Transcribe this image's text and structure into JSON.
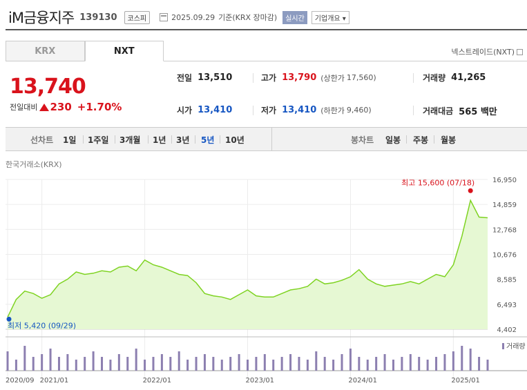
{
  "header": {
    "name": "iM금융지주",
    "code": "139130",
    "market": "코스피",
    "date": "2025.09.29",
    "date_note": "기준(KRX 장마감)",
    "realtime": "실시간",
    "company_info": "기업개요 ▾"
  },
  "tabs": [
    {
      "label": "KRX"
    },
    {
      "label": "NXT"
    }
  ],
  "nextrade": "넥스트레이드(NXT)",
  "price": {
    "current": "13,740",
    "prev_label": "전일대비",
    "change": "230",
    "percent": "+1.70%"
  },
  "stats": {
    "prev_close_label": "전일",
    "prev_close": "13,510",
    "high_label": "고가",
    "high": "13,790",
    "upper_label": "(상한가",
    "upper": "17,560)",
    "volume_label": "거래량",
    "volume": "41,265",
    "open_label": "시가",
    "open": "13,410",
    "low_label": "저가",
    "low": "13,410",
    "lower_label": "(하한가",
    "lower": "9,460)",
    "amount_label": "거래대금",
    "amount": "565 백만"
  },
  "periods": {
    "line_label": "선차트",
    "items": [
      "1일",
      "1주일",
      "3개월",
      "1년",
      "3년",
      "5년",
      "10년"
    ],
    "selected": "5년",
    "candle_label": "봉차트",
    "candle_items": [
      "일봉",
      "주봉",
      "월봉"
    ]
  },
  "exchange_label": "한국거래소(KRX)",
  "colors": {
    "up": "#d9131c",
    "down": "#1656c2",
    "line": "#7ed321",
    "area": "#e6f8d3",
    "volume": "#8c7fb0"
  },
  "chart_data": {
    "type": "area",
    "y_ticks": [
      "16,950",
      "14,859",
      "12,768",
      "10,676",
      "8,585",
      "6,493",
      "4,402"
    ],
    "ylim": [
      4402,
      16950
    ],
    "x_ticks": [
      "2020/09",
      "2021/01",
      "2022/01",
      "2023/01",
      "2024/01",
      "2025/01"
    ],
    "high_label": "최고 15,600 (07/18)",
    "low_label": "최저 5,420 (09/29)",
    "volume_label": "거래량",
    "x_start": "2020-09",
    "step_months": 1,
    "values": [
      5420,
      6900,
      7600,
      7400,
      7000,
      7300,
      8200,
      8600,
      9200,
      9000,
      9100,
      9300,
      9200,
      9600,
      9700,
      9300,
      10200,
      9800,
      9600,
      9300,
      9000,
      8900,
      8300,
      7400,
      7200,
      7100,
      6900,
      7300,
      7700,
      7200,
      7100,
      7100,
      7400,
      7700,
      7800,
      8000,
      8600,
      8200,
      8300,
      8500,
      8800,
      9400,
      8600,
      8200,
      8000,
      8100,
      8200,
      8400,
      8200,
      8600,
      9000,
      8800,
      9800,
      12200,
      15200,
      13800,
      13740
    ],
    "volume": [
      0.7,
      0.4,
      0.9,
      0.5,
      0.6,
      0.8,
      0.5,
      0.6,
      0.4,
      0.5,
      0.7,
      0.5,
      0.4,
      0.6,
      0.5,
      0.8,
      0.4,
      0.5,
      0.6,
      0.5,
      0.7,
      0.4,
      0.5,
      0.6,
      0.5,
      0.4,
      0.5,
      0.6,
      0.4,
      0.5,
      0.6,
      0.4,
      0.5,
      0.6,
      0.5,
      0.4,
      0.7,
      0.5,
      0.4,
      0.6,
      0.8,
      0.5,
      0.4,
      0.5,
      0.6,
      0.4,
      0.5,
      0.6,
      0.5,
      0.4,
      0.5,
      0.6,
      0.7,
      0.9,
      0.8,
      0.5,
      0.4
    ]
  }
}
